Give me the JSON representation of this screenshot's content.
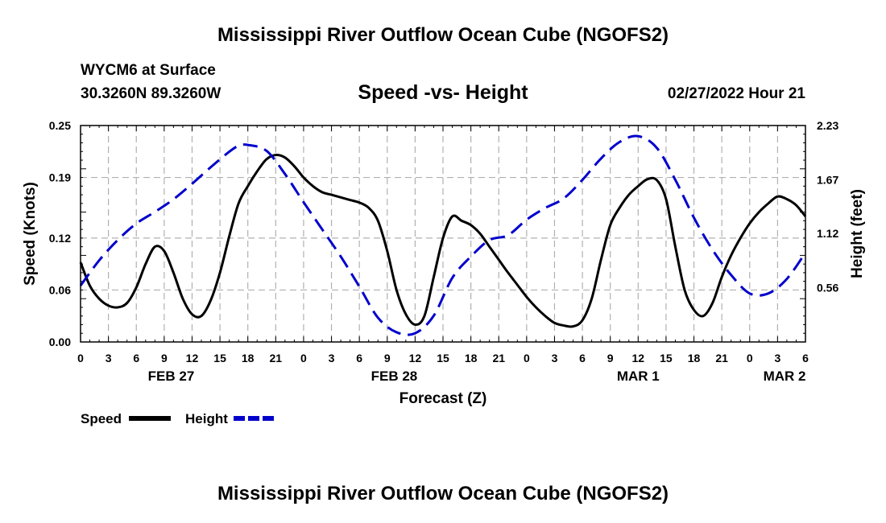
{
  "header": {
    "title": "Mississippi River Outflow Ocean Cube (NGOFS2)",
    "station": "WYCM6 at Surface",
    "coords": "30.3260N  89.3260W",
    "subtitle": "Speed -vs- Height",
    "datetime": "02/27/2022 Hour 21"
  },
  "footer": {
    "title": "Mississippi River Outflow Ocean Cube (NGOFS2)"
  },
  "chart_data": {
    "type": "line",
    "title": "Speed -vs- Height",
    "xlabel": "Forecast (Z)",
    "ylabel": "Speed (Knots)",
    "y2label": "Height (feet)",
    "x_range_hours": [
      0,
      78
    ],
    "ylim": [
      0,
      0.25
    ],
    "y2lim": [
      0,
      2.23
    ],
    "yticks": [
      "0.00",
      "0.06",
      "0.12",
      "0.19",
      "0.25"
    ],
    "y2ticks": [
      "0.56",
      "1.12",
      "1.67",
      "2.23"
    ],
    "xtick_labels": [
      "0",
      "3",
      "6",
      "9",
      "12",
      "15",
      "18",
      "21",
      "0",
      "3",
      "6",
      "9",
      "12",
      "15",
      "18",
      "21",
      "0",
      "3",
      "6",
      "9",
      "12",
      "15",
      "18",
      "21",
      "0",
      "3",
      "6"
    ],
    "date_labels": [
      {
        "label": "FEB 27",
        "hour": 9.75
      },
      {
        "label": "FEB 28",
        "hour": 33.75
      },
      {
        "label": "MAR 1",
        "hour": 60
      },
      {
        "label": "MAR 2",
        "hour": 75.75
      }
    ],
    "legend": [
      {
        "name": "Speed",
        "color": "#000000",
        "style": "solid"
      },
      {
        "name": "Height",
        "color": "#0000cc",
        "style": "dashed"
      }
    ],
    "series": [
      {
        "name": "Speed",
        "axis": "left",
        "color": "#000000",
        "x": [
          0,
          1,
          2,
          3,
          4,
          5,
          6,
          7,
          8,
          9,
          10,
          11,
          12,
          13,
          14,
          15,
          16,
          17,
          18,
          19,
          20,
          21,
          22,
          23,
          24,
          25,
          26,
          27,
          28,
          29,
          30,
          31,
          32,
          33,
          34,
          35,
          36,
          37,
          38,
          39,
          40,
          41,
          42,
          43,
          44,
          45,
          46,
          47,
          48,
          49,
          50,
          51,
          52,
          53,
          54,
          55,
          56,
          57,
          58,
          59,
          60,
          61,
          62,
          63,
          64,
          65,
          66,
          67,
          68,
          69,
          70,
          71,
          72,
          73,
          74,
          75,
          76,
          77,
          78
        ],
        "values": [
          0.092,
          0.065,
          0.05,
          0.042,
          0.04,
          0.045,
          0.063,
          0.09,
          0.11,
          0.105,
          0.08,
          0.05,
          0.032,
          0.03,
          0.048,
          0.08,
          0.122,
          0.16,
          0.18,
          0.197,
          0.211,
          0.216,
          0.213,
          0.203,
          0.19,
          0.18,
          0.173,
          0.17,
          0.167,
          0.164,
          0.161,
          0.155,
          0.14,
          0.105,
          0.06,
          0.032,
          0.02,
          0.03,
          0.075,
          0.12,
          0.145,
          0.14,
          0.135,
          0.125,
          0.11,
          0.095,
          0.08,
          0.066,
          0.052,
          0.04,
          0.03,
          0.022,
          0.019,
          0.018,
          0.025,
          0.05,
          0.095,
          0.135,
          0.155,
          0.17,
          0.18,
          0.188,
          0.187,
          0.165,
          0.11,
          0.06,
          0.037,
          0.03,
          0.045,
          0.075,
          0.1,
          0.12,
          0.137,
          0.15,
          0.16,
          0.168,
          0.165,
          0.158,
          0.145
        ]
      },
      {
        "name": "Height",
        "axis": "right",
        "color": "#0000cc",
        "x": [
          0,
          2,
          4,
          6,
          8,
          10,
          12,
          14,
          16,
          17,
          18,
          20,
          22,
          24,
          26,
          28,
          30,
          32,
          34,
          36,
          38,
          40,
          42,
          44,
          46,
          48,
          50,
          52,
          54,
          56,
          58,
          60,
          62,
          64,
          66,
          68,
          70,
          72,
          74,
          76,
          78
        ],
        "values": [
          0.58,
          0.84,
          1.05,
          1.22,
          1.34,
          1.47,
          1.63,
          1.8,
          1.96,
          2.02,
          2.03,
          1.97,
          1.73,
          1.44,
          1.16,
          0.88,
          0.57,
          0.25,
          0.1,
          0.09,
          0.27,
          0.66,
          0.88,
          1.05,
          1.1,
          1.26,
          1.38,
          1.48,
          1.67,
          1.89,
          2.06,
          2.12,
          2.0,
          1.67,
          1.28,
          0.95,
          0.69,
          0.5,
          0.5,
          0.65,
          0.92
        ]
      }
    ]
  }
}
